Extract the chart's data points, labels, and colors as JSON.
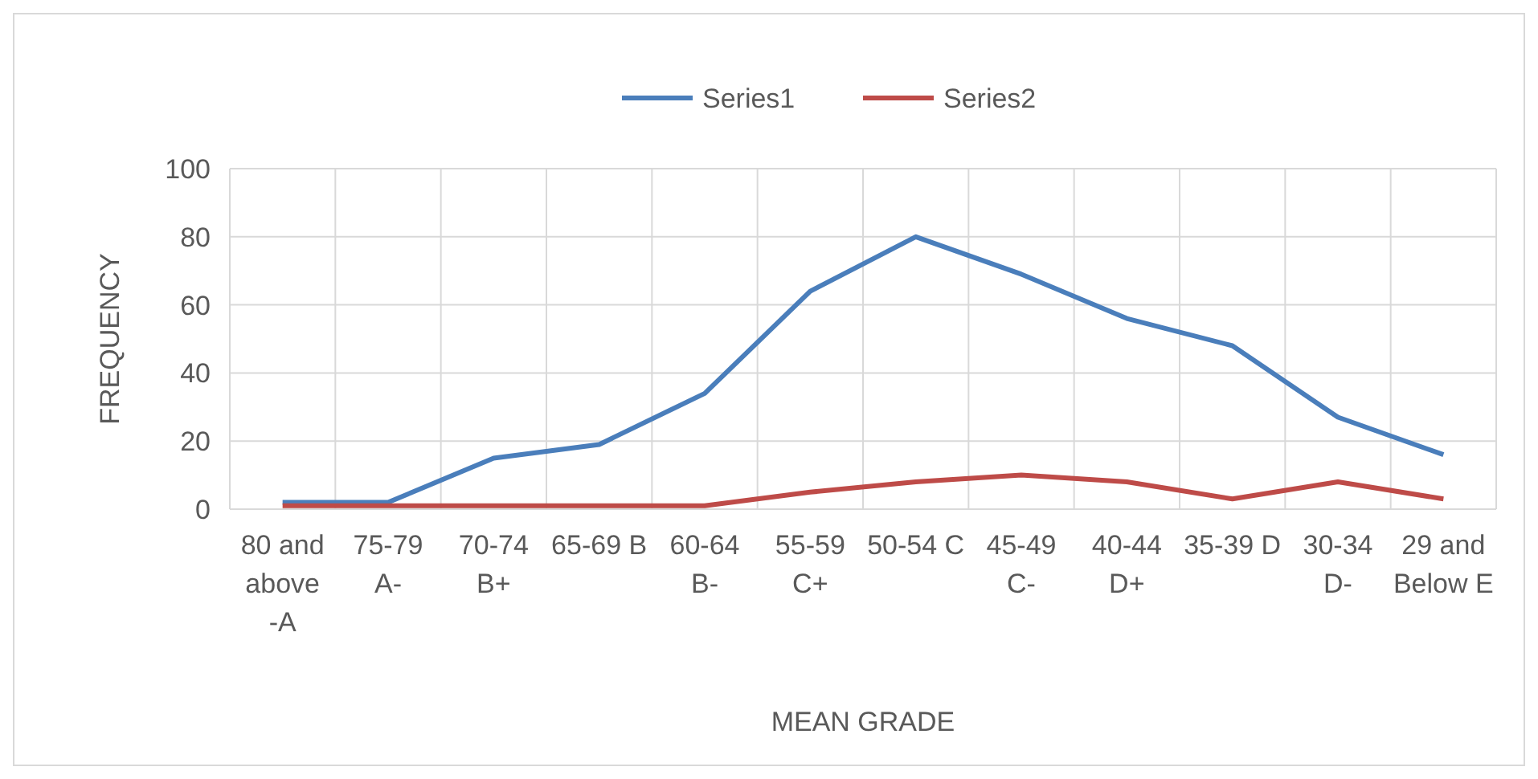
{
  "chart_data": {
    "type": "line",
    "xlabel": "MEAN GRADE",
    "ylabel": "FREQUENCY",
    "categories": [
      "80 and above -A",
      "75-79 A-",
      "70-74 B+",
      "65-69 B",
      "60-64 B-",
      "55-59 C+",
      "50-54 C",
      "45-49 C-",
      "40-44 D+",
      "35-39 D",
      "30-34 D-",
      "29 and Below E"
    ],
    "series": [
      {
        "name": "Series1",
        "color": "#4a7ebb",
        "values": [
          2,
          2,
          15,
          19,
          34,
          64,
          80,
          69,
          56,
          48,
          27,
          16
        ]
      },
      {
        "name": "Series2",
        "color": "#be4b48",
        "values": [
          1,
          1,
          1,
          1,
          1,
          5,
          8,
          10,
          8,
          3,
          8,
          3
        ]
      }
    ],
    "ylim": [
      0,
      100
    ],
    "yticks": [
      0,
      20,
      40,
      60,
      80,
      100
    ],
    "grid": true,
    "legend": "top",
    "marker": "none",
    "line_style": "solid"
  }
}
